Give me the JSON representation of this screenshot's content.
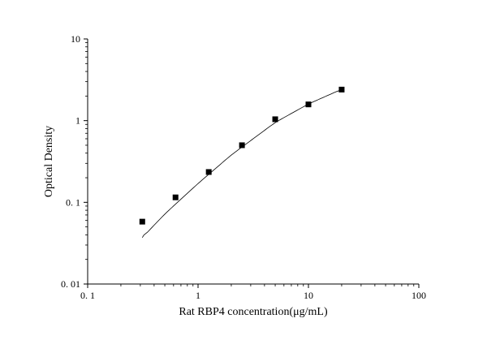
{
  "chart_data": {
    "type": "scatter",
    "xlabel": "Rat RBP4 concentration(μg/mL)",
    "ylabel": "Optical Density",
    "xscale": "log",
    "yscale": "log",
    "xlim": [
      0.1,
      100
    ],
    "ylim": [
      0.01,
      10
    ],
    "x_ticks": [
      "0. 1",
      "1",
      "10",
      "100"
    ],
    "y_ticks": [
      "0. 01",
      "0. 1",
      "1",
      "10"
    ],
    "grid": false,
    "legend": "none",
    "series": [
      {
        "marker": "square",
        "color": "#000000",
        "x": [
          0.3125,
          0.625,
          1.25,
          2.5,
          5,
          10,
          20
        ],
        "y": [
          0.058,
          0.115,
          0.235,
          0.5,
          1.04,
          1.58,
          2.4
        ]
      }
    ],
    "fit_curve": {
      "color": "#000000",
      "x": [
        0.3125,
        0.5,
        1,
        2,
        5,
        10,
        20
      ],
      "y": [
        0.037,
        0.072,
        0.17,
        0.38,
        0.95,
        1.6,
        2.42
      ]
    }
  }
}
